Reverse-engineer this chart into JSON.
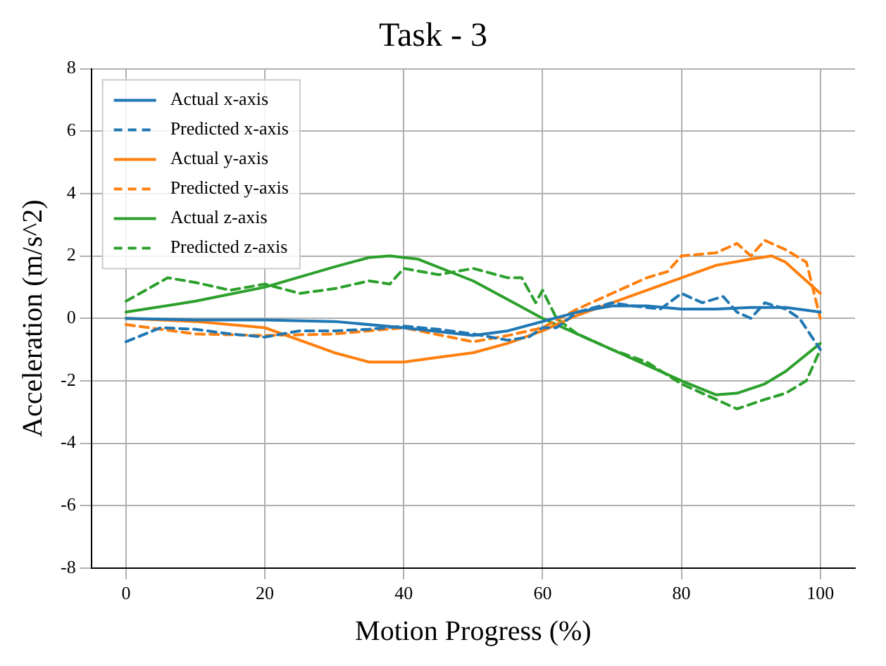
{
  "chart_data": {
    "type": "line",
    "title": "Task - 3",
    "xlabel": "Motion Progress (%)",
    "ylabel": "Acceleration (m/s^2)",
    "xlim": [
      -5,
      105
    ],
    "ylim": [
      -8,
      8
    ],
    "xticks": [
      0,
      20,
      40,
      60,
      80,
      100
    ],
    "yticks": [
      -8,
      -6,
      -4,
      -2,
      0,
      2,
      4,
      6,
      8
    ],
    "grid": true,
    "legend": "top left",
    "marker": "none",
    "series": [
      {
        "name": "Actual x-axis",
        "color": "#1f77b4",
        "line_style": "solid",
        "x": [
          0,
          10,
          20,
          30,
          40,
          50,
          55,
          60,
          65,
          70,
          75,
          80,
          85,
          90,
          95,
          100
        ],
        "values": [
          0,
          -0.05,
          -0.05,
          -0.1,
          -0.3,
          -0.55,
          -0.4,
          -0.1,
          0.2,
          0.4,
          0.4,
          0.3,
          0.3,
          0.35,
          0.35,
          0.2
        ]
      },
      {
        "name": "Predicted x-axis",
        "color": "#1f77b4",
        "line_style": "dashed",
        "x": [
          0,
          5,
          10,
          15,
          20,
          25,
          30,
          35,
          40,
          45,
          50,
          55,
          58,
          60,
          62,
          65,
          70,
          73,
          77,
          80,
          83,
          86,
          88,
          90,
          92,
          95,
          97,
          100
        ],
        "values": [
          -0.75,
          -0.3,
          -0.35,
          -0.5,
          -0.6,
          -0.4,
          -0.4,
          -0.35,
          -0.25,
          -0.35,
          -0.5,
          -0.7,
          -0.6,
          -0.3,
          -0.3,
          0.2,
          0.5,
          0.4,
          0.3,
          0.8,
          0.5,
          0.7,
          0.2,
          0,
          0.5,
          0.3,
          0,
          -1
        ]
      },
      {
        "name": "Actual y-axis",
        "color": "#ff7f0e",
        "line_style": "solid",
        "x": [
          0,
          10,
          20,
          25,
          30,
          35,
          40,
          45,
          50,
          55,
          60,
          65,
          70,
          75,
          80,
          85,
          90,
          93,
          95,
          100
        ],
        "values": [
          0,
          -0.1,
          -0.3,
          -0.7,
          -1.1,
          -1.4,
          -1.4,
          -1.25,
          -1.1,
          -0.8,
          -0.4,
          0.1,
          0.5,
          0.9,
          1.3,
          1.7,
          1.9,
          2,
          1.8,
          0.8
        ]
      },
      {
        "name": "Predicted y-axis",
        "color": "#ff7f0e",
        "line_style": "dashed",
        "x": [
          0,
          10,
          20,
          30,
          40,
          50,
          55,
          60,
          65,
          70,
          75,
          78,
          80,
          85,
          88,
          90,
          92,
          95,
          98,
          100
        ],
        "values": [
          -0.2,
          -0.5,
          -0.55,
          -0.5,
          -0.3,
          -0.75,
          -0.55,
          -0.3,
          0.3,
          0.8,
          1.3,
          1.5,
          2,
          2.1,
          2.4,
          2,
          2.5,
          2.2,
          1.8,
          0
        ]
      },
      {
        "name": "Actual z-axis",
        "color": "#2ca02c",
        "line_style": "solid",
        "x": [
          0,
          10,
          20,
          30,
          35,
          38,
          42,
          50,
          55,
          60,
          65,
          70,
          75,
          80,
          85,
          88,
          92,
          95,
          100
        ],
        "values": [
          0.2,
          0.55,
          1,
          1.65,
          1.95,
          2,
          1.9,
          1.2,
          0.6,
          0,
          -0.5,
          -1,
          -1.5,
          -2,
          -2.45,
          -2.4,
          -2.1,
          -1.7,
          -0.8
        ]
      },
      {
        "name": "Predicted z-axis",
        "color": "#2ca02c",
        "line_style": "dashed",
        "x": [
          0,
          6,
          10,
          15,
          20,
          25,
          30,
          35,
          38,
          40,
          45,
          50,
          55,
          57,
          59,
          60,
          62,
          65,
          70,
          75,
          80,
          85,
          88,
          92,
          95,
          98,
          100
        ],
        "values": [
          0.55,
          1.3,
          1.15,
          0.9,
          1.1,
          0.8,
          0.95,
          1.2,
          1.1,
          1.6,
          1.4,
          1.6,
          1.3,
          1.3,
          0.5,
          0.9,
          0,
          -0.5,
          -1,
          -1.4,
          -2.1,
          -2.6,
          -2.9,
          -2.6,
          -2.4,
          -2,
          -1
        ]
      }
    ]
  }
}
